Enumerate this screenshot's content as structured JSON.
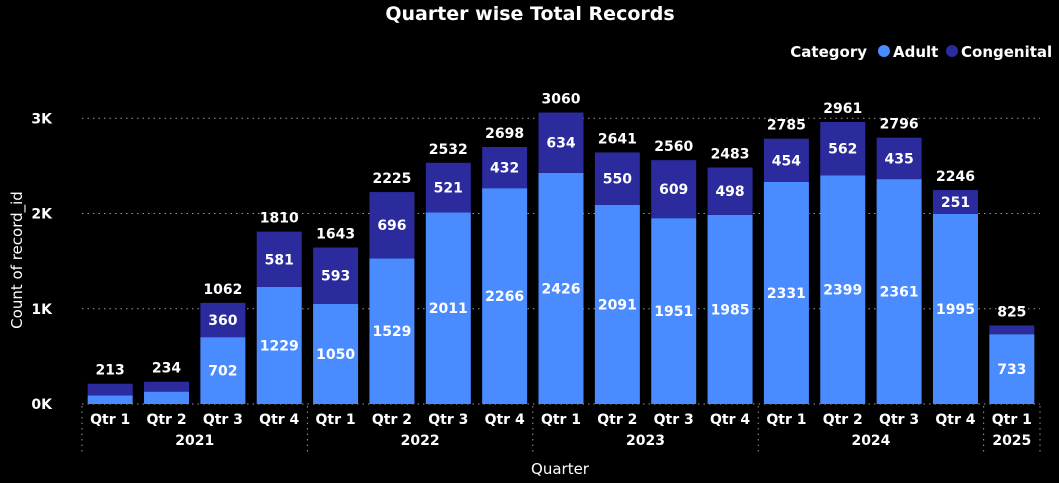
{
  "chart_data": {
    "type": "bar",
    "stacked": true,
    "title": "Quarter wise Total Records",
    "xlabel": "Quarter",
    "ylabel": "Count of record_id",
    "ylim": [
      0,
      3300
    ],
    "yticks": [
      {
        "value": 0,
        "label": "0K"
      },
      {
        "value": 1000,
        "label": "1K"
      },
      {
        "value": 2000,
        "label": "2K"
      },
      {
        "value": 3000,
        "label": "3K"
      }
    ],
    "grid": true,
    "legend": {
      "title": "Category",
      "position": "top-right"
    },
    "categories": [
      "Qtr 1",
      "Qtr 2",
      "Qtr 3",
      "Qtr 4",
      "Qtr 1",
      "Qtr 2",
      "Qtr 3",
      "Qtr 4",
      "Qtr 1",
      "Qtr 2",
      "Qtr 3",
      "Qtr 4",
      "Qtr 1",
      "Qtr 2",
      "Qtr 3",
      "Qtr 4",
      "Qtr 1"
    ],
    "years": [
      {
        "label": "2021",
        "count": 4
      },
      {
        "label": "2022",
        "count": 4
      },
      {
        "label": "2023",
        "count": 4
      },
      {
        "label": "2024",
        "count": 4
      },
      {
        "label": "2025",
        "count": 1
      }
    ],
    "series": [
      {
        "name": "Adult",
        "color": "#4A8CFF",
        "values": [
          90,
          130,
          702,
          1229,
          1050,
          1529,
          2011,
          2266,
          2426,
          2091,
          1951,
          1985,
          2331,
          2399,
          2361,
          1995,
          733
        ],
        "labels": [
          "",
          "",
          "702",
          "1229",
          "1050",
          "1529",
          "2011",
          "2266",
          "2426",
          "2091",
          "1951",
          "1985",
          "2331",
          "2399",
          "2361",
          "1995",
          "733"
        ]
      },
      {
        "name": "Congenital",
        "color": "#2B2B9E",
        "values": [
          123,
          104,
          360,
          581,
          593,
          696,
          521,
          432,
          634,
          550,
          609,
          498,
          454,
          562,
          435,
          251,
          92
        ],
        "labels": [
          "",
          "",
          "360",
          "581",
          "593",
          "696",
          "521",
          "432",
          "634",
          "550",
          "609",
          "498",
          "454",
          "562",
          "435",
          "251",
          ""
        ]
      }
    ],
    "totals": [
      213,
      234,
      1062,
      1810,
      1643,
      2225,
      2532,
      2698,
      3060,
      2641,
      2560,
      2483,
      2785,
      2961,
      2796,
      2246,
      825
    ]
  }
}
